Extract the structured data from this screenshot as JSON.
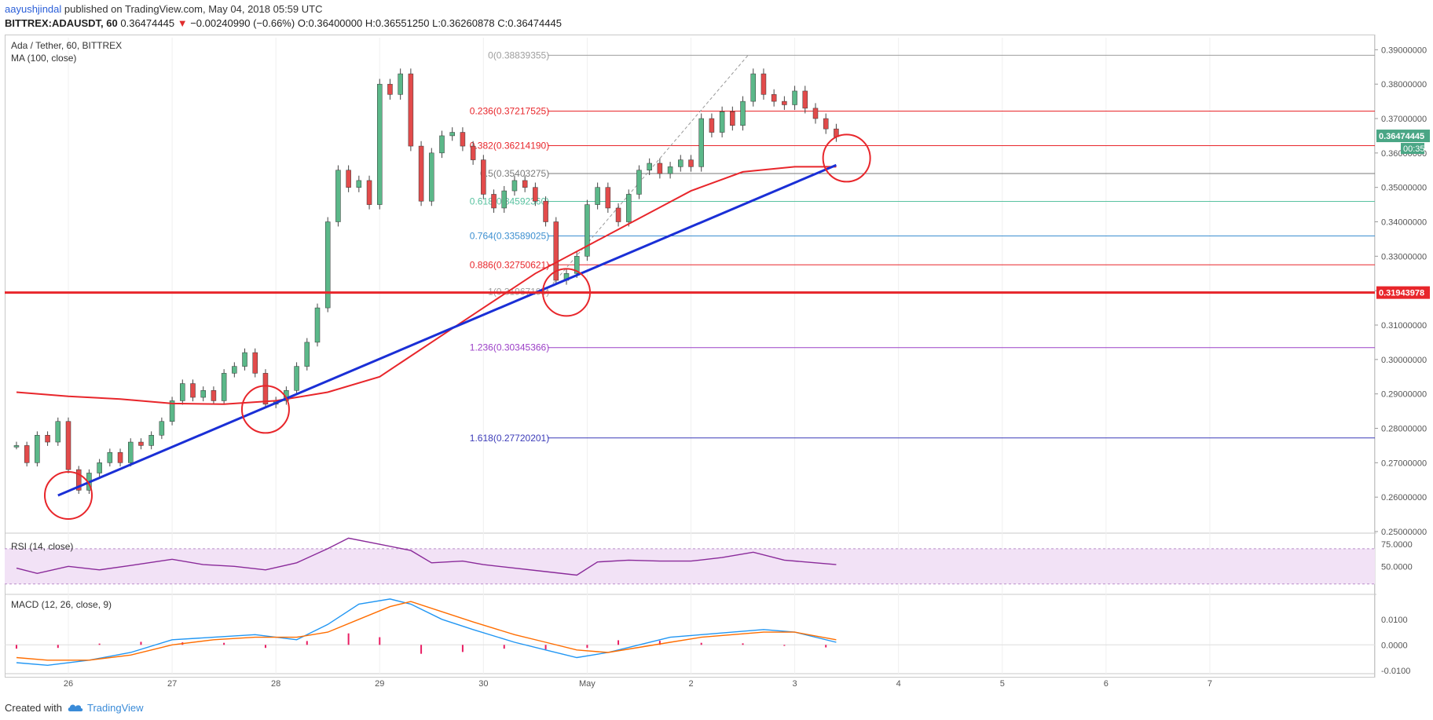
{
  "header": {
    "author": "aayushjindal",
    "published": "published on TradingView.com, May 04, 2018 05:59 UTC",
    "symbol": "BITTREX:ADAUSDT, 60",
    "last": "0.36474445",
    "arrow": "▼",
    "change": "−0.00240990 (−0.66%)",
    "ohlc": "O:0.36400000 H:0.36551250 L:0.36260878 C:0.36474445"
  },
  "footer": {
    "created": "Created with",
    "brand": "TradingView"
  },
  "colors": {
    "up_candle": "#5bb889",
    "down_candle": "#e24b4b",
    "ma": "#e8262b",
    "trendline": "#1a2fd6",
    "horizontal": "#e8262b",
    "rsi_line": "#8a2a9a",
    "rsi_band": "#f2e2f6",
    "macd": "#2196f3",
    "signal": "#ff6d00",
    "hist": "#e91e63"
  },
  "chart_data": [
    {
      "type": "candlestick",
      "title": "Ada / Tether, 60, BITTREX",
      "indicator": "MA (100, close)",
      "x_ticks": [
        "26",
        "27",
        "28",
        "29",
        "30",
        "May",
        "2",
        "3",
        "4",
        "5",
        "6",
        "7"
      ],
      "ylim": [
        0.25,
        0.3935
      ],
      "y_ticks": [
        "0.25000000",
        "0.26000000",
        "0.27000000",
        "0.28000000",
        "0.29000000",
        "0.30000000",
        "0.31000000",
        "0.32000000",
        "0.33000000",
        "0.34000000",
        "0.35000000",
        "0.36000000",
        "0.37000000",
        "0.38000000",
        "0.39000000"
      ],
      "price_series": [
        [
          25.5,
          0.275
        ],
        [
          25.6,
          0.27
        ],
        [
          25.7,
          0.278
        ],
        [
          25.8,
          0.276
        ],
        [
          25.9,
          0.282
        ],
        [
          26.0,
          0.268
        ],
        [
          26.1,
          0.262
        ],
        [
          26.2,
          0.267
        ],
        [
          26.3,
          0.27
        ],
        [
          26.4,
          0.273
        ],
        [
          26.5,
          0.27
        ],
        [
          26.6,
          0.276
        ],
        [
          26.7,
          0.275
        ],
        [
          26.8,
          0.278
        ],
        [
          26.9,
          0.282
        ],
        [
          27.0,
          0.288
        ],
        [
          27.1,
          0.293
        ],
        [
          27.2,
          0.289
        ],
        [
          27.3,
          0.291
        ],
        [
          27.4,
          0.288
        ],
        [
          27.5,
          0.296
        ],
        [
          27.6,
          0.298
        ],
        [
          27.7,
          0.302
        ],
        [
          27.8,
          0.296
        ],
        [
          27.9,
          0.287
        ],
        [
          28.0,
          0.288
        ],
        [
          28.1,
          0.291
        ],
        [
          28.2,
          0.298
        ],
        [
          28.3,
          0.305
        ],
        [
          28.4,
          0.315
        ],
        [
          28.5,
          0.34
        ],
        [
          28.6,
          0.355
        ],
        [
          28.7,
          0.35
        ],
        [
          28.8,
          0.352
        ],
        [
          28.9,
          0.345
        ],
        [
          29.0,
          0.38
        ],
        [
          29.1,
          0.377
        ],
        [
          29.2,
          0.383
        ],
        [
          29.3,
          0.362
        ],
        [
          29.4,
          0.346
        ],
        [
          29.5,
          0.36
        ],
        [
          29.6,
          0.365
        ],
        [
          29.7,
          0.366
        ],
        [
          29.8,
          0.362
        ],
        [
          29.9,
          0.358
        ],
        [
          30.0,
          0.348
        ],
        [
          30.1,
          0.344
        ],
        [
          30.2,
          0.349
        ],
        [
          30.3,
          0.352
        ],
        [
          30.4,
          0.35
        ],
        [
          30.5,
          0.346
        ],
        [
          30.6,
          0.34
        ],
        [
          30.7,
          0.323
        ],
        [
          30.8,
          0.325
        ],
        [
          30.9,
          0.33
        ],
        [
          31.0,
          0.345
        ],
        [
          31.1,
          0.35
        ],
        [
          31.2,
          0.344
        ],
        [
          31.3,
          0.34
        ],
        [
          31.4,
          0.348
        ],
        [
          31.5,
          0.355
        ],
        [
          31.6,
          0.357
        ],
        [
          31.7,
          0.354
        ],
        [
          31.8,
          0.356
        ],
        [
          31.9,
          0.358
        ],
        [
          32.0,
          0.356
        ],
        [
          32.1,
          0.37
        ],
        [
          32.2,
          0.366
        ],
        [
          32.3,
          0.372
        ],
        [
          32.4,
          0.368
        ],
        [
          32.5,
          0.375
        ],
        [
          32.6,
          0.383
        ],
        [
          32.7,
          0.377
        ],
        [
          32.8,
          0.375
        ],
        [
          32.9,
          0.374
        ],
        [
          33.0,
          0.378
        ],
        [
          33.1,
          0.373
        ],
        [
          33.2,
          0.37
        ],
        [
          33.3,
          0.367
        ],
        [
          33.4,
          0.3647
        ]
      ],
      "ma100": [
        [
          25.5,
          0.2905
        ],
        [
          26.0,
          0.2893
        ],
        [
          26.5,
          0.2885
        ],
        [
          27.0,
          0.2872
        ],
        [
          27.5,
          0.287
        ],
        [
          28.0,
          0.288
        ],
        [
          28.5,
          0.2905
        ],
        [
          29.0,
          0.295
        ],
        [
          29.5,
          0.305
        ],
        [
          30.0,
          0.315
        ],
        [
          30.5,
          0.325
        ],
        [
          31.0,
          0.333
        ],
        [
          31.5,
          0.341
        ],
        [
          32.0,
          0.349
        ],
        [
          32.5,
          0.3545
        ],
        [
          33.0,
          0.356
        ],
        [
          33.4,
          0.356
        ]
      ],
      "fib_levels": [
        {
          "label": "0(0.38839355)",
          "value": 0.38839355,
          "color": "#9e9e9e"
        },
        {
          "label": "0.236(0.37217525)",
          "value": 0.37217525,
          "color": "#e8262b"
        },
        {
          "label": "0.382(0.36214190)",
          "value": 0.3621419,
          "color": "#e8262b"
        },
        {
          "label": "0.5(0.35403275)",
          "value": 0.35403275,
          "color": "#7a7a7a"
        },
        {
          "label": "0.618(0.34592360)",
          "value": 0.3459236,
          "color": "#59c2a0"
        },
        {
          "label": "0.764(0.33589025)",
          "value": 0.33589025,
          "color": "#3c8fd0"
        },
        {
          "label": "0.886(0.32750621)",
          "value": 0.32750621,
          "color": "#e8262b"
        },
        {
          "label": "1(0.31967195)",
          "value": 0.31967195,
          "color": "#9e9e9e"
        },
        {
          "label": "1.236(0.30345366)",
          "value": 0.30345366,
          "color": "#9c40c7"
        },
        {
          "label": "1.618(0.27720201)",
          "value": 0.27720201,
          "color": "#3b3bb8"
        }
      ],
      "horizontal_line": {
        "value": 0.31943978,
        "label": "0.31943978"
      },
      "trendline": [
        [
          25.9,
          0.2605
        ],
        [
          33.4,
          0.3565
        ]
      ],
      "current_price": {
        "label": "0.36474445",
        "time": "00:35"
      },
      "highlight_circles": [
        [
          26.0,
          0.2605
        ],
        [
          27.9,
          0.2855
        ],
        [
          30.8,
          0.3195
        ],
        [
          33.5,
          0.3585
        ]
      ],
      "retracement_from": [
        30.6,
        0.3196
      ],
      "retracement_to": [
        32.55,
        0.3884
      ]
    },
    {
      "type": "line",
      "title": "RSI (14, close)",
      "ylim": [
        20,
        85
      ],
      "y_ticks": [
        "50.0000",
        "75.0000"
      ],
      "band": [
        30,
        70
      ],
      "series": [
        [
          25.5,
          48
        ],
        [
          25.7,
          42
        ],
        [
          26.0,
          50
        ],
        [
          26.3,
          46
        ],
        [
          26.6,
          51
        ],
        [
          27.0,
          58
        ],
        [
          27.3,
          52
        ],
        [
          27.6,
          50
        ],
        [
          27.9,
          46
        ],
        [
          28.2,
          54
        ],
        [
          28.5,
          70
        ],
        [
          28.7,
          82
        ],
        [
          29.0,
          75
        ],
        [
          29.3,
          68
        ],
        [
          29.5,
          54
        ],
        [
          29.8,
          56
        ],
        [
          30.0,
          52
        ],
        [
          30.3,
          48
        ],
        [
          30.6,
          44
        ],
        [
          30.9,
          40
        ],
        [
          31.1,
          55
        ],
        [
          31.4,
          57
        ],
        [
          31.7,
          56
        ],
        [
          32.0,
          56
        ],
        [
          32.3,
          60
        ],
        [
          32.6,
          66
        ],
        [
          32.9,
          57
        ],
        [
          33.2,
          54
        ],
        [
          33.4,
          52
        ]
      ]
    },
    {
      "type": "line",
      "title": "MACD (12, 26, close, 9)",
      "ylim": [
        -0.011,
        0.0195
      ],
      "y_ticks": [
        "0.0100",
        "0.0000",
        "-0.0100"
      ],
      "macd": [
        [
          25.5,
          -0.007
        ],
        [
          25.8,
          -0.008
        ],
        [
          26.2,
          -0.006
        ],
        [
          26.6,
          -0.003
        ],
        [
          27.0,
          0.002
        ],
        [
          27.4,
          0.003
        ],
        [
          27.8,
          0.004
        ],
        [
          28.2,
          0.002
        ],
        [
          28.5,
          0.008
        ],
        [
          28.8,
          0.016
        ],
        [
          29.1,
          0.018
        ],
        [
          29.3,
          0.016
        ],
        [
          29.6,
          0.01
        ],
        [
          29.9,
          0.006
        ],
        [
          30.3,
          0.001
        ],
        [
          30.6,
          -0.002
        ],
        [
          30.9,
          -0.005
        ],
        [
          31.2,
          -0.003
        ],
        [
          31.5,
          0.0
        ],
        [
          31.8,
          0.003
        ],
        [
          32.1,
          0.004
        ],
        [
          32.4,
          0.005
        ],
        [
          32.7,
          0.006
        ],
        [
          33.0,
          0.005
        ],
        [
          33.4,
          0.001
        ]
      ],
      "signal": [
        [
          25.5,
          -0.005
        ],
        [
          25.8,
          -0.006
        ],
        [
          26.2,
          -0.006
        ],
        [
          26.6,
          -0.004
        ],
        [
          27.0,
          0.0
        ],
        [
          27.4,
          0.002
        ],
        [
          27.8,
          0.003
        ],
        [
          28.2,
          0.003
        ],
        [
          28.5,
          0.005
        ],
        [
          28.8,
          0.01
        ],
        [
          29.1,
          0.015
        ],
        [
          29.3,
          0.017
        ],
        [
          29.6,
          0.013
        ],
        [
          29.9,
          0.009
        ],
        [
          30.3,
          0.004
        ],
        [
          30.6,
          0.001
        ],
        [
          30.9,
          -0.002
        ],
        [
          31.2,
          -0.003
        ],
        [
          31.5,
          -0.001
        ],
        [
          31.8,
          0.001
        ],
        [
          32.1,
          0.003
        ],
        [
          32.4,
          0.004
        ],
        [
          32.7,
          0.005
        ],
        [
          33.0,
          0.005
        ],
        [
          33.4,
          0.002
        ]
      ],
      "histogram": [
        [
          25.5,
          -0.0015
        ],
        [
          25.9,
          -0.0012
        ],
        [
          26.3,
          0.0005
        ],
        [
          26.7,
          0.0012
        ],
        [
          27.1,
          0.001
        ],
        [
          27.5,
          0.0008
        ],
        [
          27.9,
          -0.0012
        ],
        [
          28.3,
          0.0015
        ],
        [
          28.7,
          0.0045
        ],
        [
          29.0,
          0.003
        ],
        [
          29.4,
          -0.0035
        ],
        [
          29.8,
          -0.0028
        ],
        [
          30.2,
          -0.0015
        ],
        [
          30.6,
          -0.0018
        ],
        [
          31.0,
          -0.0012
        ],
        [
          31.3,
          0.0018
        ],
        [
          31.7,
          0.0016
        ],
        [
          32.1,
          0.0008
        ],
        [
          32.5,
          0.0006
        ],
        [
          32.9,
          -0.0004
        ],
        [
          33.3,
          -0.001
        ]
      ]
    }
  ]
}
